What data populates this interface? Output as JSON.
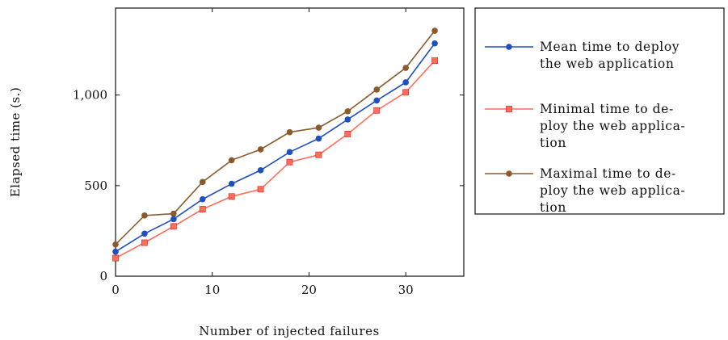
{
  "chart_data": {
    "type": "line",
    "xlabel": "Number of injected failures",
    "ylabel": "Elapsed time (s.)",
    "xlim": [
      0,
      36
    ],
    "ylim": [
      0,
      1480
    ],
    "x_ticks": [
      0,
      10,
      20,
      30
    ],
    "x_tick_labels": [
      "0",
      "10",
      "20",
      "30"
    ],
    "y_ticks": [
      0,
      500,
      1000
    ],
    "y_tick_labels": [
      "0",
      "500",
      "1,000"
    ],
    "grid": false,
    "legend_position": "right, outside plot",
    "x": [
      0,
      3,
      6,
      9,
      12,
      15,
      18,
      21,
      24,
      27,
      30,
      33
    ],
    "series": [
      {
        "name_lines": [
          "Mean time to deploy",
          "the web application"
        ],
        "color": "#1f4fbf",
        "marker": "circle",
        "values": [
          135,
          235,
          315,
          425,
          510,
          585,
          685,
          760,
          865,
          970,
          1070,
          1285
        ]
      },
      {
        "name_lines": [
          "Minimal time to de-",
          "ploy the web applica-",
          "tion"
        ],
        "color": "#ff6e5a",
        "marker": "square",
        "values": [
          100,
          185,
          275,
          370,
          440,
          480,
          630,
          670,
          785,
          915,
          1015,
          1190
        ]
      },
      {
        "name_lines": [
          "Maximal time to de-",
          "ploy the web applica-",
          "tion"
        ],
        "color": "#8a5a2b",
        "marker": "circle",
        "values": [
          175,
          335,
          345,
          520,
          640,
          700,
          795,
          820,
          910,
          1030,
          1150,
          1355
        ]
      }
    ]
  }
}
